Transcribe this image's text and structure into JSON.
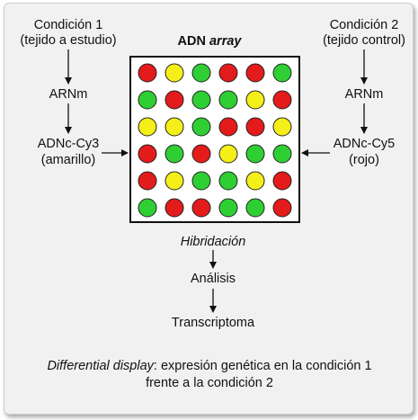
{
  "left": {
    "title": "Condición 1",
    "subtitle": "(tejido a estudio)",
    "mrna": "ARNm",
    "cdna": "ADNc-Cy3",
    "cdna_color": "(amarillo)"
  },
  "right": {
    "title": "Condición 2",
    "subtitle": "(tejido control)",
    "mrna": "ARNm",
    "cdna": "ADNc-Cy5",
    "cdna_color": "(rojo)"
  },
  "array": {
    "title_plain": "ADN ",
    "title_italic": "array",
    "grid": [
      [
        "red",
        "yellow",
        "green",
        "red",
        "red",
        "green"
      ],
      [
        "green",
        "red",
        "green",
        "green",
        "yellow",
        "red"
      ],
      [
        "yellow",
        "yellow",
        "green",
        "red",
        "red",
        "yellow"
      ],
      [
        "red",
        "green",
        "red",
        "yellow",
        "green",
        "green"
      ],
      [
        "red",
        "yellow",
        "green",
        "green",
        "yellow",
        "red"
      ],
      [
        "green",
        "red",
        "red",
        "green",
        "green",
        "red"
      ]
    ]
  },
  "flow": {
    "hybridization": "Hibridación",
    "analysis": "Análisis",
    "transcriptome": "Transcriptoma"
  },
  "caption": {
    "italic_part": "Differential display",
    "line1_rest": ": expresión genética en la condición 1",
    "line2": "frente a la condición 2"
  },
  "colors": {
    "red": "#e41b1b",
    "yellow": "#f5ef19",
    "green": "#2fcf34",
    "background": "#f1f1f1"
  }
}
